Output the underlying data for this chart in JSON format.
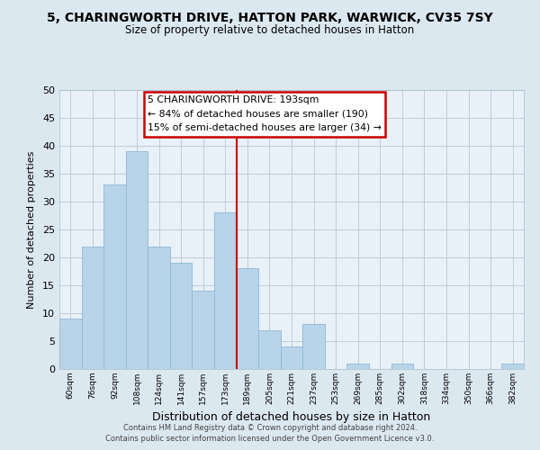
{
  "title": "5, CHARINGWORTH DRIVE, HATTON PARK, WARWICK, CV35 7SY",
  "subtitle": "Size of property relative to detached houses in Hatton",
  "xlabel": "Distribution of detached houses by size in Hatton",
  "ylabel": "Number of detached properties",
  "footer_line1": "Contains HM Land Registry data © Crown copyright and database right 2024.",
  "footer_line2": "Contains public sector information licensed under the Open Government Licence v3.0.",
  "bar_labels": [
    "60sqm",
    "76sqm",
    "92sqm",
    "108sqm",
    "124sqm",
    "141sqm",
    "157sqm",
    "173sqm",
    "189sqm",
    "205sqm",
    "221sqm",
    "237sqm",
    "253sqm",
    "269sqm",
    "285sqm",
    "302sqm",
    "318sqm",
    "334sqm",
    "350sqm",
    "366sqm",
    "382sqm"
  ],
  "bar_values": [
    9,
    22,
    33,
    39,
    22,
    19,
    14,
    28,
    18,
    7,
    4,
    8,
    0,
    1,
    0,
    1,
    0,
    0,
    0,
    0,
    1
  ],
  "bar_color": "#b8d4e8",
  "bar_edge_color": "#90b8d4",
  "vline_x_index": 8,
  "vline_color": "#cc0000",
  "ylim": [
    0,
    50
  ],
  "yticks": [
    0,
    5,
    10,
    15,
    20,
    25,
    30,
    35,
    40,
    45,
    50
  ],
  "annotation_title": "5 CHARINGWORTH DRIVE: 193sqm",
  "annotation_line1": "← 84% of detached houses are smaller (190)",
  "annotation_line2": "15% of semi-detached houses are larger (34) →",
  "background_color": "#dce8f0",
  "plot_bg_color": "#e8f0f8",
  "grid_color": "#c0ccd8"
}
